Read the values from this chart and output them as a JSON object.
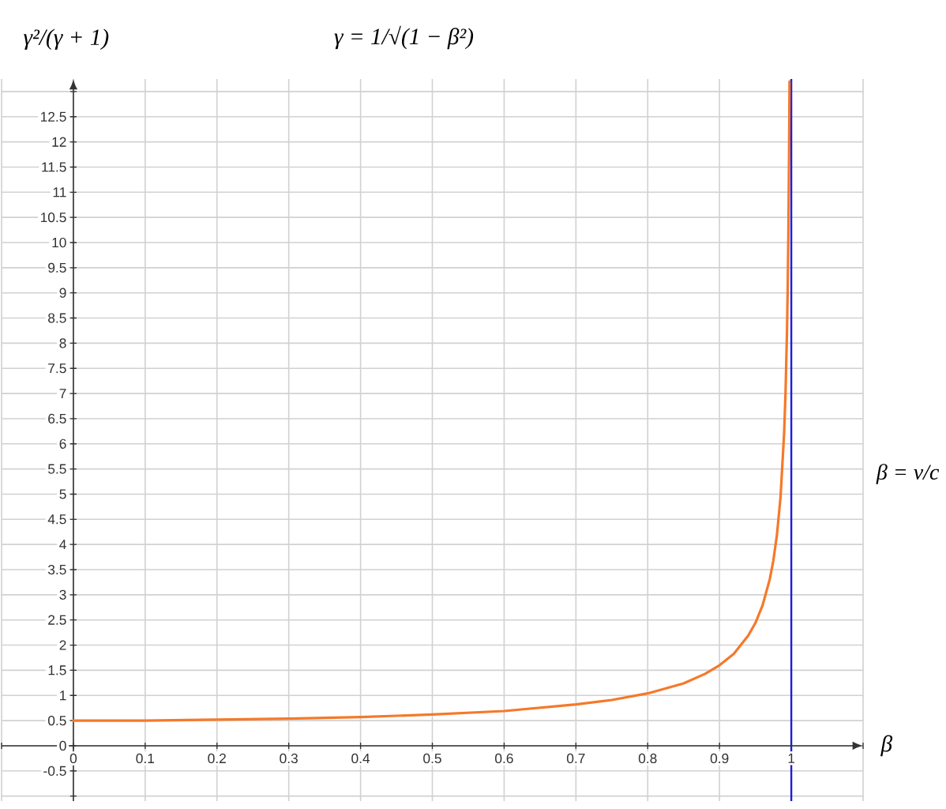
{
  "chart_data": {
    "type": "line",
    "title": "γ = 1/√(1 − β²)",
    "xlabel": "β",
    "ylabel": "γ²/(γ + 1)",
    "annotations": [
      "β = v/c"
    ],
    "x": [
      0,
      0.1,
      0.2,
      0.3,
      0.4,
      0.5,
      0.6,
      0.7,
      0.75,
      0.8,
      0.85,
      0.88,
      0.9,
      0.92,
      0.94,
      0.95,
      0.96,
      0.97,
      0.975,
      0.98,
      0.985,
      0.99,
      0.992,
      0.994,
      0.995,
      0.996,
      0.997,
      0.9975
    ],
    "values": [
      0.5,
      0.5,
      0.52,
      0.54,
      0.57,
      0.62,
      0.69,
      0.82,
      0.91,
      1.04,
      1.24,
      1.43,
      1.6,
      1.83,
      2.19,
      2.44,
      2.79,
      3.31,
      3.68,
      4.19,
      4.94,
      6.21,
      7.03,
      8.24,
      9.1,
      10.27,
      11.99,
      13.2
    ],
    "color": "#f5792a",
    "line_style": "solid",
    "xlim": [
      -0.1,
      1.1
    ],
    "ylim": [
      -1.1,
      13.25
    ],
    "xticks": [
      {
        "value": -0.1,
        "label": null
      },
      0,
      0.1,
      0.2,
      0.3,
      0.4,
      0.5,
      0.6,
      0.7,
      0.8,
      0.9,
      1,
      {
        "value": 1.1,
        "label": null
      }
    ],
    "yticks": [
      {
        "value": -1,
        "label": null
      },
      -0.5,
      0,
      0.5,
      1,
      1.5,
      2,
      2.5,
      3,
      3.5,
      4,
      4.5,
      5,
      5.5,
      6,
      6.5,
      7,
      7.5,
      8,
      8.5,
      9,
      9.5,
      10,
      10.5,
      11,
      11.5,
      12,
      12.5,
      {
        "value": 13,
        "label": null
      }
    ],
    "grid": true,
    "ref_lines": [
      {
        "axis": "x",
        "value": 1,
        "color": "#1c1ce0"
      }
    ]
  }
}
